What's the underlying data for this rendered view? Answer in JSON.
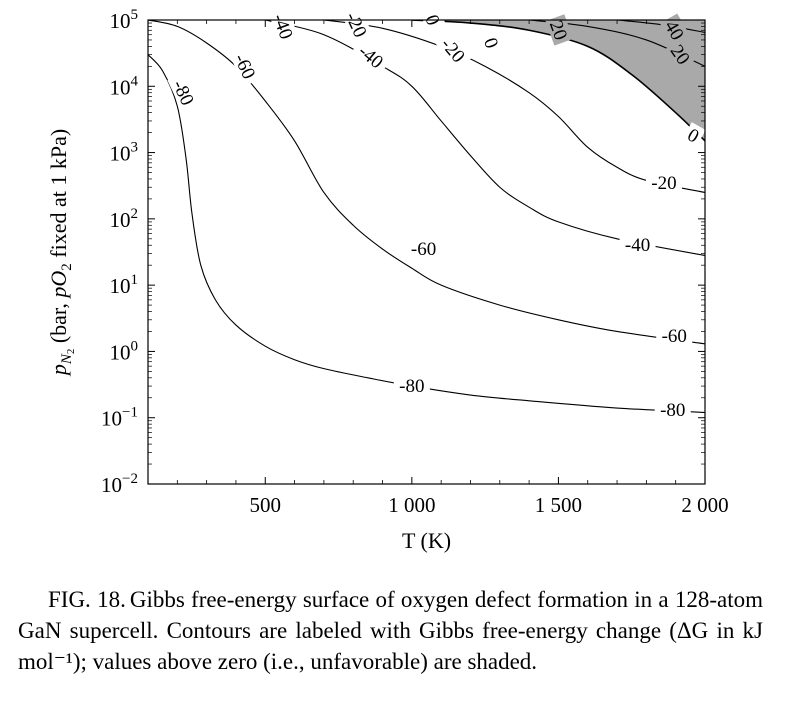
{
  "chart_data": {
    "type": "contour",
    "title": "",
    "xlabel": "T (K)",
    "ylabel": "p_N2 (bar, pO2 fixed at 1 kPa)",
    "ylabel_parts": {
      "p": "p",
      "sub": "N",
      "subsub": "2",
      "rest": " (bar, ",
      "p2": "pO",
      "sub2": "2",
      "rest2": " fixed at 1 kPa)"
    },
    "x_scale": "linear",
    "y_scale": "log",
    "xlim": [
      100,
      2000
    ],
    "ylim": [
      0.01,
      100000
    ],
    "x_ticks": [
      {
        "value": 500,
        "label": "500"
      },
      {
        "value": 1000,
        "label": "1 000"
      },
      {
        "value": 1500,
        "label": "1 500"
      },
      {
        "value": 2000,
        "label": "2 000"
      }
    ],
    "y_ticks": [
      {
        "value": 0.01,
        "base": "10",
        "exp": "−2"
      },
      {
        "value": 0.1,
        "base": "10",
        "exp": "−1"
      },
      {
        "value": 1,
        "base": "10",
        "exp": "0"
      },
      {
        "value": 10,
        "base": "10",
        "exp": "1"
      },
      {
        "value": 100,
        "base": "10",
        "exp": "2"
      },
      {
        "value": 1000,
        "base": "10",
        "exp": "3"
      },
      {
        "value": 10000,
        "base": "10",
        "exp": "4"
      },
      {
        "value": 100000,
        "base": "10",
        "exp": "5"
      }
    ],
    "shade_color": "#a9a9a9",
    "line_color": "#000000",
    "shaded_region": "dG > 0",
    "contours": [
      {
        "level": -80,
        "label": "-80",
        "points": [
          [
            100,
            30000
          ],
          [
            150,
            17000
          ],
          [
            200,
            5000
          ],
          [
            230,
            800
          ],
          [
            250,
            120
          ],
          [
            280,
            20
          ],
          [
            330,
            6
          ],
          [
            400,
            2.5
          ],
          [
            500,
            1.2
          ],
          [
            600,
            0.75
          ],
          [
            700,
            0.55
          ],
          [
            850,
            0.4
          ],
          [
            1000,
            0.3
          ],
          [
            1200,
            0.22
          ],
          [
            1400,
            0.18
          ],
          [
            1700,
            0.14
          ],
          [
            2000,
            0.12
          ]
        ],
        "labels": [
          {
            "text": "-80",
            "x": 220,
            "y": 8000,
            "angle": 65
          },
          {
            "text": "-80",
            "x": 1000,
            "y": 0.3,
            "angle": 0
          },
          {
            "text": "-80",
            "x": 1890,
            "y": 0.13,
            "angle": 0
          }
        ]
      },
      {
        "level": -60,
        "label": "-60",
        "points": [
          [
            100,
            100000
          ],
          [
            200,
            80000
          ],
          [
            300,
            45000
          ],
          [
            400,
            20000
          ],
          [
            500,
            6000
          ],
          [
            600,
            1500
          ],
          [
            700,
            250
          ],
          [
            800,
            80
          ],
          [
            900,
            35
          ],
          [
            1000,
            18
          ],
          [
            1100,
            10
          ],
          [
            1300,
            5
          ],
          [
            1500,
            3
          ],
          [
            1700,
            2
          ],
          [
            2000,
            1.3
          ]
        ],
        "labels": [
          {
            "text": "-60",
            "x": 430,
            "y": 20000,
            "angle": 65
          },
          {
            "text": "-60",
            "x": 1040,
            "y": 35,
            "angle": 0
          },
          {
            "text": "-60",
            "x": 1895,
            "y": 1.7,
            "angle": 0
          }
        ]
      },
      {
        "level": -40,
        "label": "-40",
        "points": [
          [
            500,
            100000
          ],
          [
            700,
            60000
          ],
          [
            900,
            20000
          ],
          [
            1000,
            10000
          ],
          [
            1100,
            3000
          ],
          [
            1200,
            900
          ],
          [
            1300,
            300
          ],
          [
            1400,
            150
          ],
          [
            1500,
            90
          ],
          [
            1700,
            50
          ],
          [
            2000,
            28
          ]
        ],
        "labels": [
          {
            "text": "-40",
            "x": 560,
            "y": 80000,
            "angle": 70
          },
          {
            "text": "-40",
            "x": 860,
            "y": 28000,
            "angle": 40
          },
          {
            "text": "-40",
            "x": 1770,
            "y": 40,
            "angle": 0
          }
        ]
      },
      {
        "level": -20,
        "label": "-20",
        "points": [
          [
            700,
            100000
          ],
          [
            900,
            75000
          ],
          [
            1100,
            40000
          ],
          [
            1250,
            20000
          ],
          [
            1400,
            8000
          ],
          [
            1500,
            3500
          ],
          [
            1600,
            1200
          ],
          [
            1700,
            600
          ],
          [
            1800,
            380
          ],
          [
            2000,
            250
          ]
        ],
        "labels": [
          {
            "text": "-20",
            "x": 810,
            "y": 85000,
            "angle": 65
          },
          {
            "text": "-20",
            "x": 1140,
            "y": 35000,
            "angle": 50
          },
          {
            "text": "-20",
            "x": 1860,
            "y": 350,
            "angle": 0
          }
        ]
      },
      {
        "level": 0,
        "label": "0",
        "points": [
          [
            1000,
            100000
          ],
          [
            1200,
            90000
          ],
          [
            1400,
            70000
          ],
          [
            1600,
            40000
          ],
          [
            1750,
            15000
          ],
          [
            1900,
            4000
          ],
          [
            2000,
            1500
          ]
        ],
        "labels": [
          {
            "text": "0",
            "x": 1070,
            "y": 100000,
            "angle": 70
          },
          {
            "text": "0",
            "x": 1270,
            "y": 45000,
            "angle": 70
          },
          {
            "text": "0",
            "x": 1960,
            "y": 1800,
            "angle": 30
          }
        ]
      },
      {
        "level": 20,
        "label": "20",
        "points": [
          [
            1400,
            100000
          ],
          [
            1600,
            80000
          ],
          [
            1800,
            50000
          ],
          [
            2000,
            20000
          ]
        ],
        "labels": [
          {
            "text": "20",
            "x": 1500,
            "y": 70000,
            "angle": 70
          },
          {
            "text": "20",
            "x": 1915,
            "y": 30000,
            "angle": 55
          }
        ]
      },
      {
        "level": 40,
        "label": "40",
        "points": [
          [
            1700,
            100000
          ],
          [
            1850,
            85000
          ],
          [
            2000,
            65000
          ]
        ],
        "labels": [
          {
            "text": "40",
            "x": 1895,
            "y": 70000,
            "angle": 60
          }
        ]
      }
    ]
  },
  "caption": {
    "label": "FIG. 18.",
    "text": "Gibbs free-energy surface of oxygen defect formation in a 128-atom GaN supercell. Contours are labeled with Gibbs free-energy change (ΔG in kJ mol⁻¹); values above zero (i.e., unfavorable) are shaded."
  }
}
